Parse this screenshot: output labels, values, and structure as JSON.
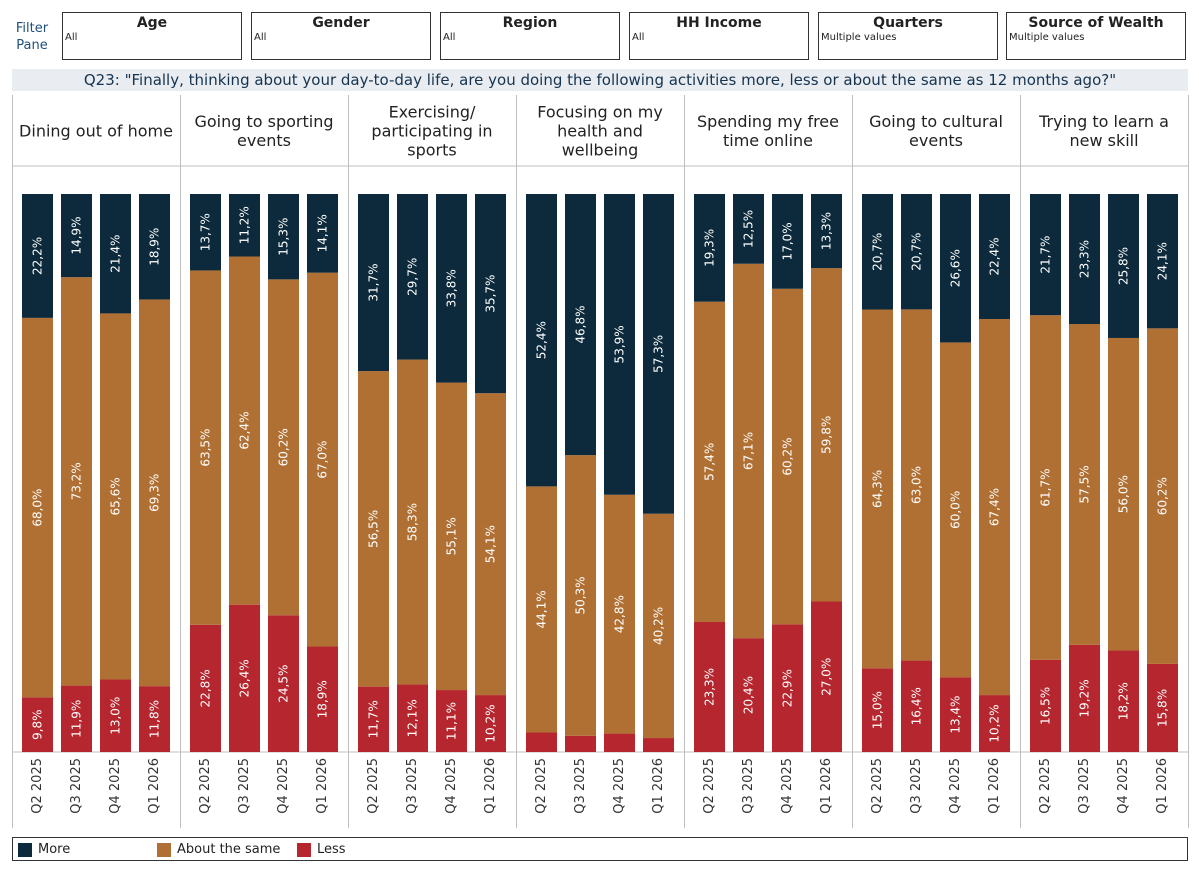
{
  "filter_pane": {
    "label": "Filter Pane",
    "filters": [
      {
        "title": "Age",
        "value": "All"
      },
      {
        "title": "Gender",
        "value": "All"
      },
      {
        "title": "Region",
        "value": "All"
      },
      {
        "title": "HH Income",
        "value": "All"
      },
      {
        "title": "Quarters",
        "value": "Multiple values"
      },
      {
        "title": "Source of Wealth",
        "value": "Multiple values"
      }
    ]
  },
  "question": "Q23: \"Finally, thinking about your day-to-day life, are you doing the following activities more, less or about the same as 12 months ago?\"",
  "legend": [
    {
      "label": "More",
      "color": "#0c2a3b"
    },
    {
      "label": "About the same",
      "color": "#b07033"
    },
    {
      "label": "Less",
      "color": "#b5262e"
    }
  ],
  "chart_data": {
    "type": "bar",
    "stacked": true,
    "normalized": true,
    "stack_order_bottom_to_top": [
      "Less",
      "About the same",
      "More"
    ],
    "quarters": [
      "Q2 2025",
      "Q3 2025",
      "Q4 2025",
      "Q1 2026"
    ],
    "panels": [
      {
        "title": "Dining out of home",
        "more": [
          22.2,
          14.9,
          21.4,
          18.9
        ],
        "same": [
          68.0,
          73.2,
          65.6,
          69.3
        ],
        "less": [
          9.8,
          11.9,
          13.0,
          11.8
        ],
        "more_labels": [
          "22,2%",
          "14,9%",
          "21,4%",
          "18,9%"
        ],
        "same_labels": [
          "68,0%",
          "73,2%",
          "65,6%",
          "69,3%"
        ],
        "less_labels": [
          "9,8%",
          "11,9%",
          "13,0%",
          "11,8%"
        ]
      },
      {
        "title": "Going to sporting events",
        "more": [
          13.7,
          11.2,
          15.3,
          14.1
        ],
        "same": [
          63.5,
          62.4,
          60.2,
          67.0
        ],
        "less": [
          22.8,
          26.4,
          24.5,
          18.9
        ],
        "more_labels": [
          "13,7%",
          "11,2%",
          "15,3%",
          "14,1%"
        ],
        "same_labels": [
          "63,5%",
          "62,4%",
          "60,2%",
          "67,0%"
        ],
        "less_labels": [
          "22,8%",
          "26,4%",
          "24,5%",
          "18,9%"
        ]
      },
      {
        "title": "Exercising/ participating in sports",
        "more": [
          31.7,
          29.7,
          33.8,
          35.7
        ],
        "same": [
          56.5,
          58.3,
          55.1,
          54.1
        ],
        "less": [
          11.7,
          12.1,
          11.1,
          10.2
        ],
        "more_labels": [
          "31,7%",
          "29,7%",
          "33,8%",
          "35,7%"
        ],
        "same_labels": [
          "56,5%",
          "58,3%",
          "55,1%",
          "54,1%"
        ],
        "less_labels": [
          "11,7%",
          "12,1%",
          "11,1%",
          "10,2%"
        ]
      },
      {
        "title": "Focusing on my health and wellbeing",
        "more": [
          52.4,
          46.8,
          53.9,
          57.3
        ],
        "same": [
          44.1,
          50.3,
          42.8,
          40.2
        ],
        "less": [
          3.5,
          2.9,
          3.3,
          2.5
        ],
        "more_labels": [
          "52,4%",
          "46,8%",
          "53,9%",
          "57,3%"
        ],
        "same_labels": [
          "44,1%",
          "50,3%",
          "42,8%",
          "40,2%"
        ],
        "less_labels": [
          "",
          "",
          "",
          ""
        ]
      },
      {
        "title": "Spending my free time online",
        "more": [
          19.3,
          12.5,
          17.0,
          13.3
        ],
        "same": [
          57.4,
          67.1,
          60.2,
          59.8
        ],
        "less": [
          23.3,
          20.4,
          22.9,
          27.0
        ],
        "more_labels": [
          "19,3%",
          "12,5%",
          "17,0%",
          "13,3%"
        ],
        "same_labels": [
          "57,4%",
          "67,1%",
          "60,2%",
          "59,8%"
        ],
        "less_labels": [
          "23,3%",
          "20,4%",
          "22,9%",
          "27,0%"
        ]
      },
      {
        "title": "Going to cultural events",
        "more": [
          20.7,
          20.7,
          26.6,
          22.4
        ],
        "same": [
          64.3,
          63.0,
          60.0,
          67.4
        ],
        "less": [
          15.0,
          16.4,
          13.4,
          10.2
        ],
        "more_labels": [
          "20,7%",
          "20,7%",
          "26,6%",
          "22,4%"
        ],
        "same_labels": [
          "64,3%",
          "63,0%",
          "60,0%",
          "67,4%"
        ],
        "less_labels": [
          "15,0%",
          "16,4%",
          "13,4%",
          "10,2%"
        ]
      },
      {
        "title": "Trying to learn a new skill",
        "more": [
          21.7,
          23.3,
          25.8,
          24.1
        ],
        "same": [
          61.7,
          57.5,
          56.0,
          60.2
        ],
        "less": [
          16.5,
          19.2,
          18.2,
          15.8
        ],
        "more_labels": [
          "21,7%",
          "23,3%",
          "25,8%",
          "24,1%"
        ],
        "same_labels": [
          "61,7%",
          "57,5%",
          "56,0%",
          "60,2%"
        ],
        "less_labels": [
          "16,5%",
          "19,2%",
          "18,2%",
          "15,8%"
        ]
      }
    ]
  }
}
